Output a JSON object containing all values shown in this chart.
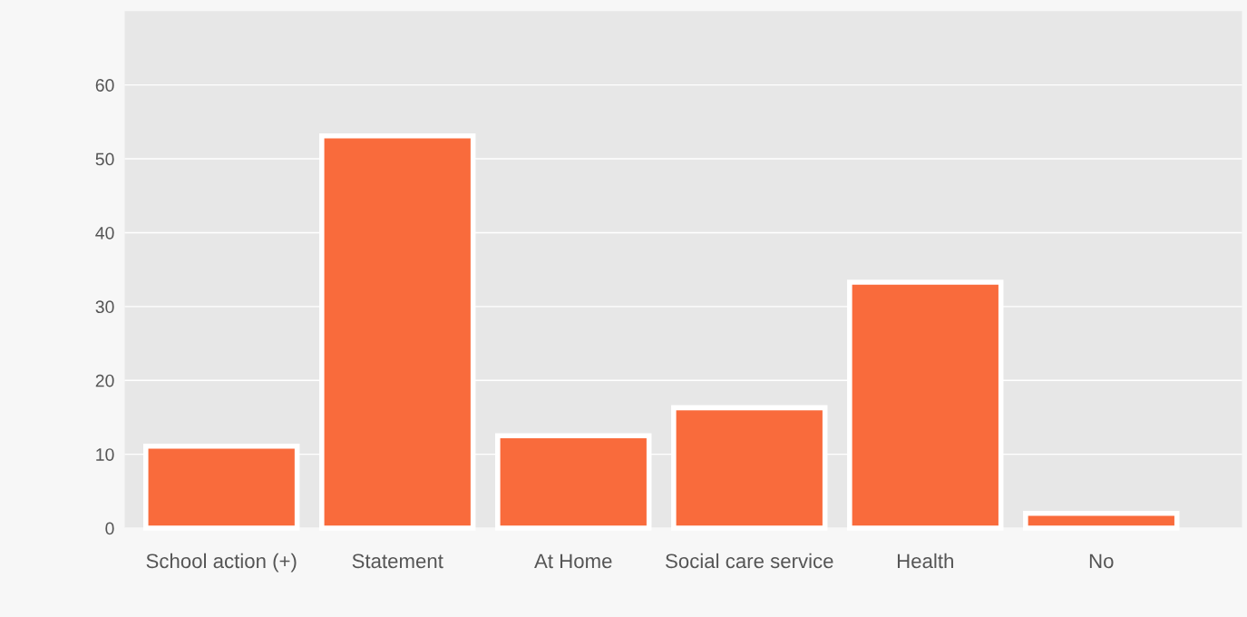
{
  "chart_data": {
    "type": "bar",
    "categories": [
      "School action (+)",
      "Statement",
      "At Home",
      "Social care service",
      "Health",
      "No"
    ],
    "values": [
      11.1,
      53.1,
      12.5,
      16.3,
      33.3,
      2.0
    ],
    "color": "#f96b3c",
    "ylim": [
      0,
      70
    ],
    "yticks": [
      0,
      10,
      20,
      30,
      40,
      50,
      60
    ],
    "grid": "y",
    "legend": false
  }
}
